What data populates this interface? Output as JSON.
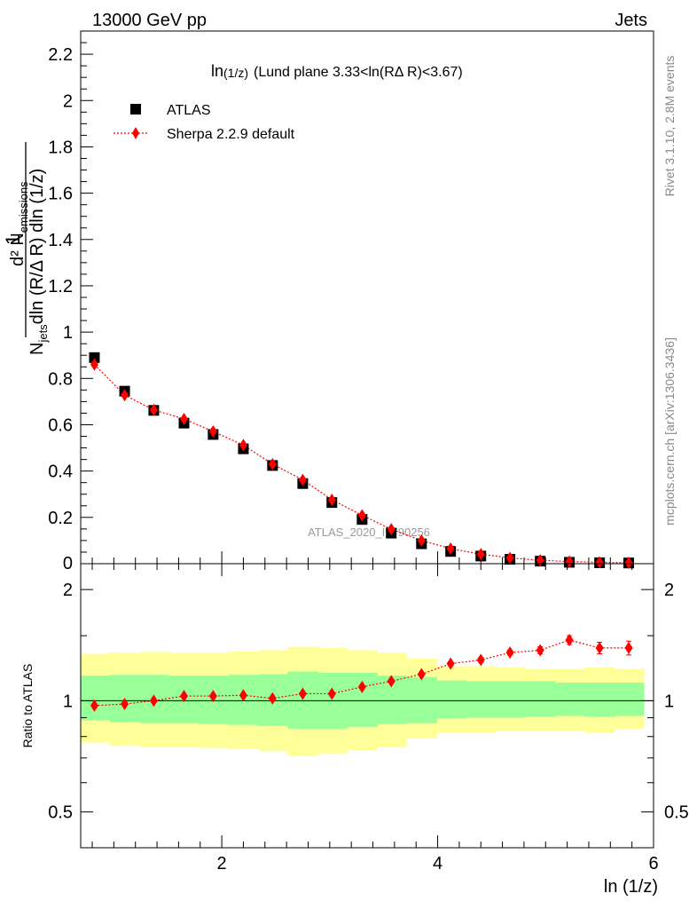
{
  "header": {
    "left": "13000 GeV pp",
    "right": "Jets"
  },
  "plot_title": "ln(1/z) (Lund plane 3.33<ln(RΔ R)<3.67)",
  "plot_title_main": "ln",
  "plot_title_sub": "(1/z)",
  "plot_title_rest": "(Lund plane 3.33<ln(RΔ R)<3.67)",
  "side_text": {
    "rivet": "Rivet 3.1.10,  2.8M events",
    "mcplots": "mcplots.cern.ch [arXiv:1306.3436]"
  },
  "watermark": "ATLAS_2020_I1790256",
  "xlabel": "ln (1/z)",
  "ratio_ylabel": "Ratio to ATLAS",
  "ylabel_parts": {
    "one": "1",
    "d2": "d² N",
    "emissions": "emissions",
    "njets": "N",
    "jets": "jets",
    "denom": "dln (R/Δ R) dln (1/z)"
  },
  "legend": [
    {
      "label": "ATLAS",
      "marker": "square",
      "color": "#000000"
    },
    {
      "label": "Sherpa 2.2.9 default",
      "marker": "diamond",
      "color": "#ff0000"
    }
  ],
  "colors": {
    "band_inner": "#99ff99",
    "band_outer": "#ffff99",
    "mc": "#ff0000",
    "data": "#000000"
  },
  "chart_data": [
    {
      "type": "scatter",
      "title": "ln(1/z) (Lund plane 3.33<ln(RΔ R)<3.67)",
      "xlabel": "",
      "ylabel": "1/N_jets d² N_emissions / dln (R/Δ R) dln (1/z)",
      "xlim": [
        0.693,
        6.0
      ],
      "ylim": [
        0,
        2.3
      ],
      "yticks": [
        0.2,
        0.4,
        0.6,
        0.8,
        1,
        1.2,
        1.4,
        1.6,
        1.8,
        2,
        2.2
      ],
      "x": [
        0.82,
        1.1,
        1.37,
        1.65,
        1.92,
        2.2,
        2.47,
        2.75,
        3.02,
        3.3,
        3.57,
        3.85,
        4.12,
        4.4,
        4.67,
        4.95,
        5.22,
        5.5,
        5.77
      ],
      "series": [
        {
          "name": "ATLAS",
          "values": [
            0.89,
            0.745,
            0.662,
            0.607,
            0.558,
            0.496,
            0.424,
            0.346,
            0.264,
            0.191,
            0.132,
            0.086,
            0.053,
            0.033,
            0.019,
            0.011,
            0.006,
            0.004,
            0.003
          ]
        },
        {
          "name": "Sherpa 2.2.9 default",
          "values": [
            0.86,
            0.728,
            0.664,
            0.625,
            0.571,
            0.512,
            0.43,
            0.362,
            0.276,
            0.209,
            0.149,
            0.1,
            0.065,
            0.041,
            0.025,
            0.015,
            0.009,
            0.006,
            0.004
          ]
        }
      ]
    },
    {
      "type": "scatter",
      "title": "",
      "xlabel": "ln (1/z)",
      "ylabel": "Ratio to ATLAS",
      "xlim": [
        0.693,
        6.0
      ],
      "ylim": [
        0.4,
        2.35
      ],
      "yscale": "log",
      "xticks": [
        2,
        4,
        6
      ],
      "yticks": [
        0.5,
        1,
        2
      ],
      "x": [
        0.82,
        1.1,
        1.37,
        1.65,
        1.92,
        2.2,
        2.47,
        2.75,
        3.02,
        3.3,
        3.57,
        3.85,
        4.12,
        4.4,
        4.67,
        4.95,
        5.22,
        5.5,
        5.77
      ],
      "ratio": [
        0.97,
        0.98,
        1.0,
        1.03,
        1.03,
        1.035,
        1.015,
        1.045,
        1.045,
        1.09,
        1.13,
        1.18,
        1.26,
        1.29,
        1.35,
        1.37,
        1.46,
        1.39,
        1.39
      ],
      "ratio_err": [
        0.01,
        0.01,
        0.01,
        0.01,
        0.01,
        0.01,
        0.01,
        0.01,
        0.01,
        0.01,
        0.01,
        0.01,
        0.015,
        0.02,
        0.02,
        0.03,
        0.04,
        0.05,
        0.06
      ],
      "band_edges": [
        0.693,
        0.965,
        1.24,
        1.51,
        1.79,
        2.06,
        2.34,
        2.61,
        2.89,
        3.16,
        3.44,
        3.71,
        3.99,
        4.26,
        4.54,
        4.81,
        5.09,
        5.36,
        5.64,
        5.91
      ],
      "band_inner": [
        [
          0.885,
          1.17
        ],
        [
          0.875,
          1.175
        ],
        [
          0.87,
          1.175
        ],
        [
          0.87,
          1.17
        ],
        [
          0.865,
          1.17
        ],
        [
          0.86,
          1.175
        ],
        [
          0.855,
          1.18
        ],
        [
          0.84,
          1.2
        ],
        [
          0.84,
          1.19
        ],
        [
          0.85,
          1.19
        ],
        [
          0.865,
          1.17
        ],
        [
          0.87,
          1.16
        ],
        [
          0.895,
          1.135
        ],
        [
          0.9,
          1.13
        ],
        [
          0.9,
          1.13
        ],
        [
          0.905,
          1.13
        ],
        [
          0.91,
          1.12
        ],
        [
          0.905,
          1.12
        ],
        [
          0.91,
          1.12
        ]
      ],
      "band_outer": [
        [
          0.77,
          1.34
        ],
        [
          0.755,
          1.35
        ],
        [
          0.75,
          1.355
        ],
        [
          0.75,
          1.35
        ],
        [
          0.745,
          1.35
        ],
        [
          0.74,
          1.36
        ],
        [
          0.73,
          1.37
        ],
        [
          0.71,
          1.4
        ],
        [
          0.72,
          1.39
        ],
        [
          0.735,
          1.37
        ],
        [
          0.75,
          1.35
        ],
        [
          0.79,
          1.3
        ],
        [
          0.82,
          1.24
        ],
        [
          0.82,
          1.24
        ],
        [
          0.83,
          1.23
        ],
        [
          0.83,
          1.22
        ],
        [
          0.83,
          1.22
        ],
        [
          0.82,
          1.23
        ],
        [
          0.84,
          1.22
        ]
      ]
    }
  ]
}
